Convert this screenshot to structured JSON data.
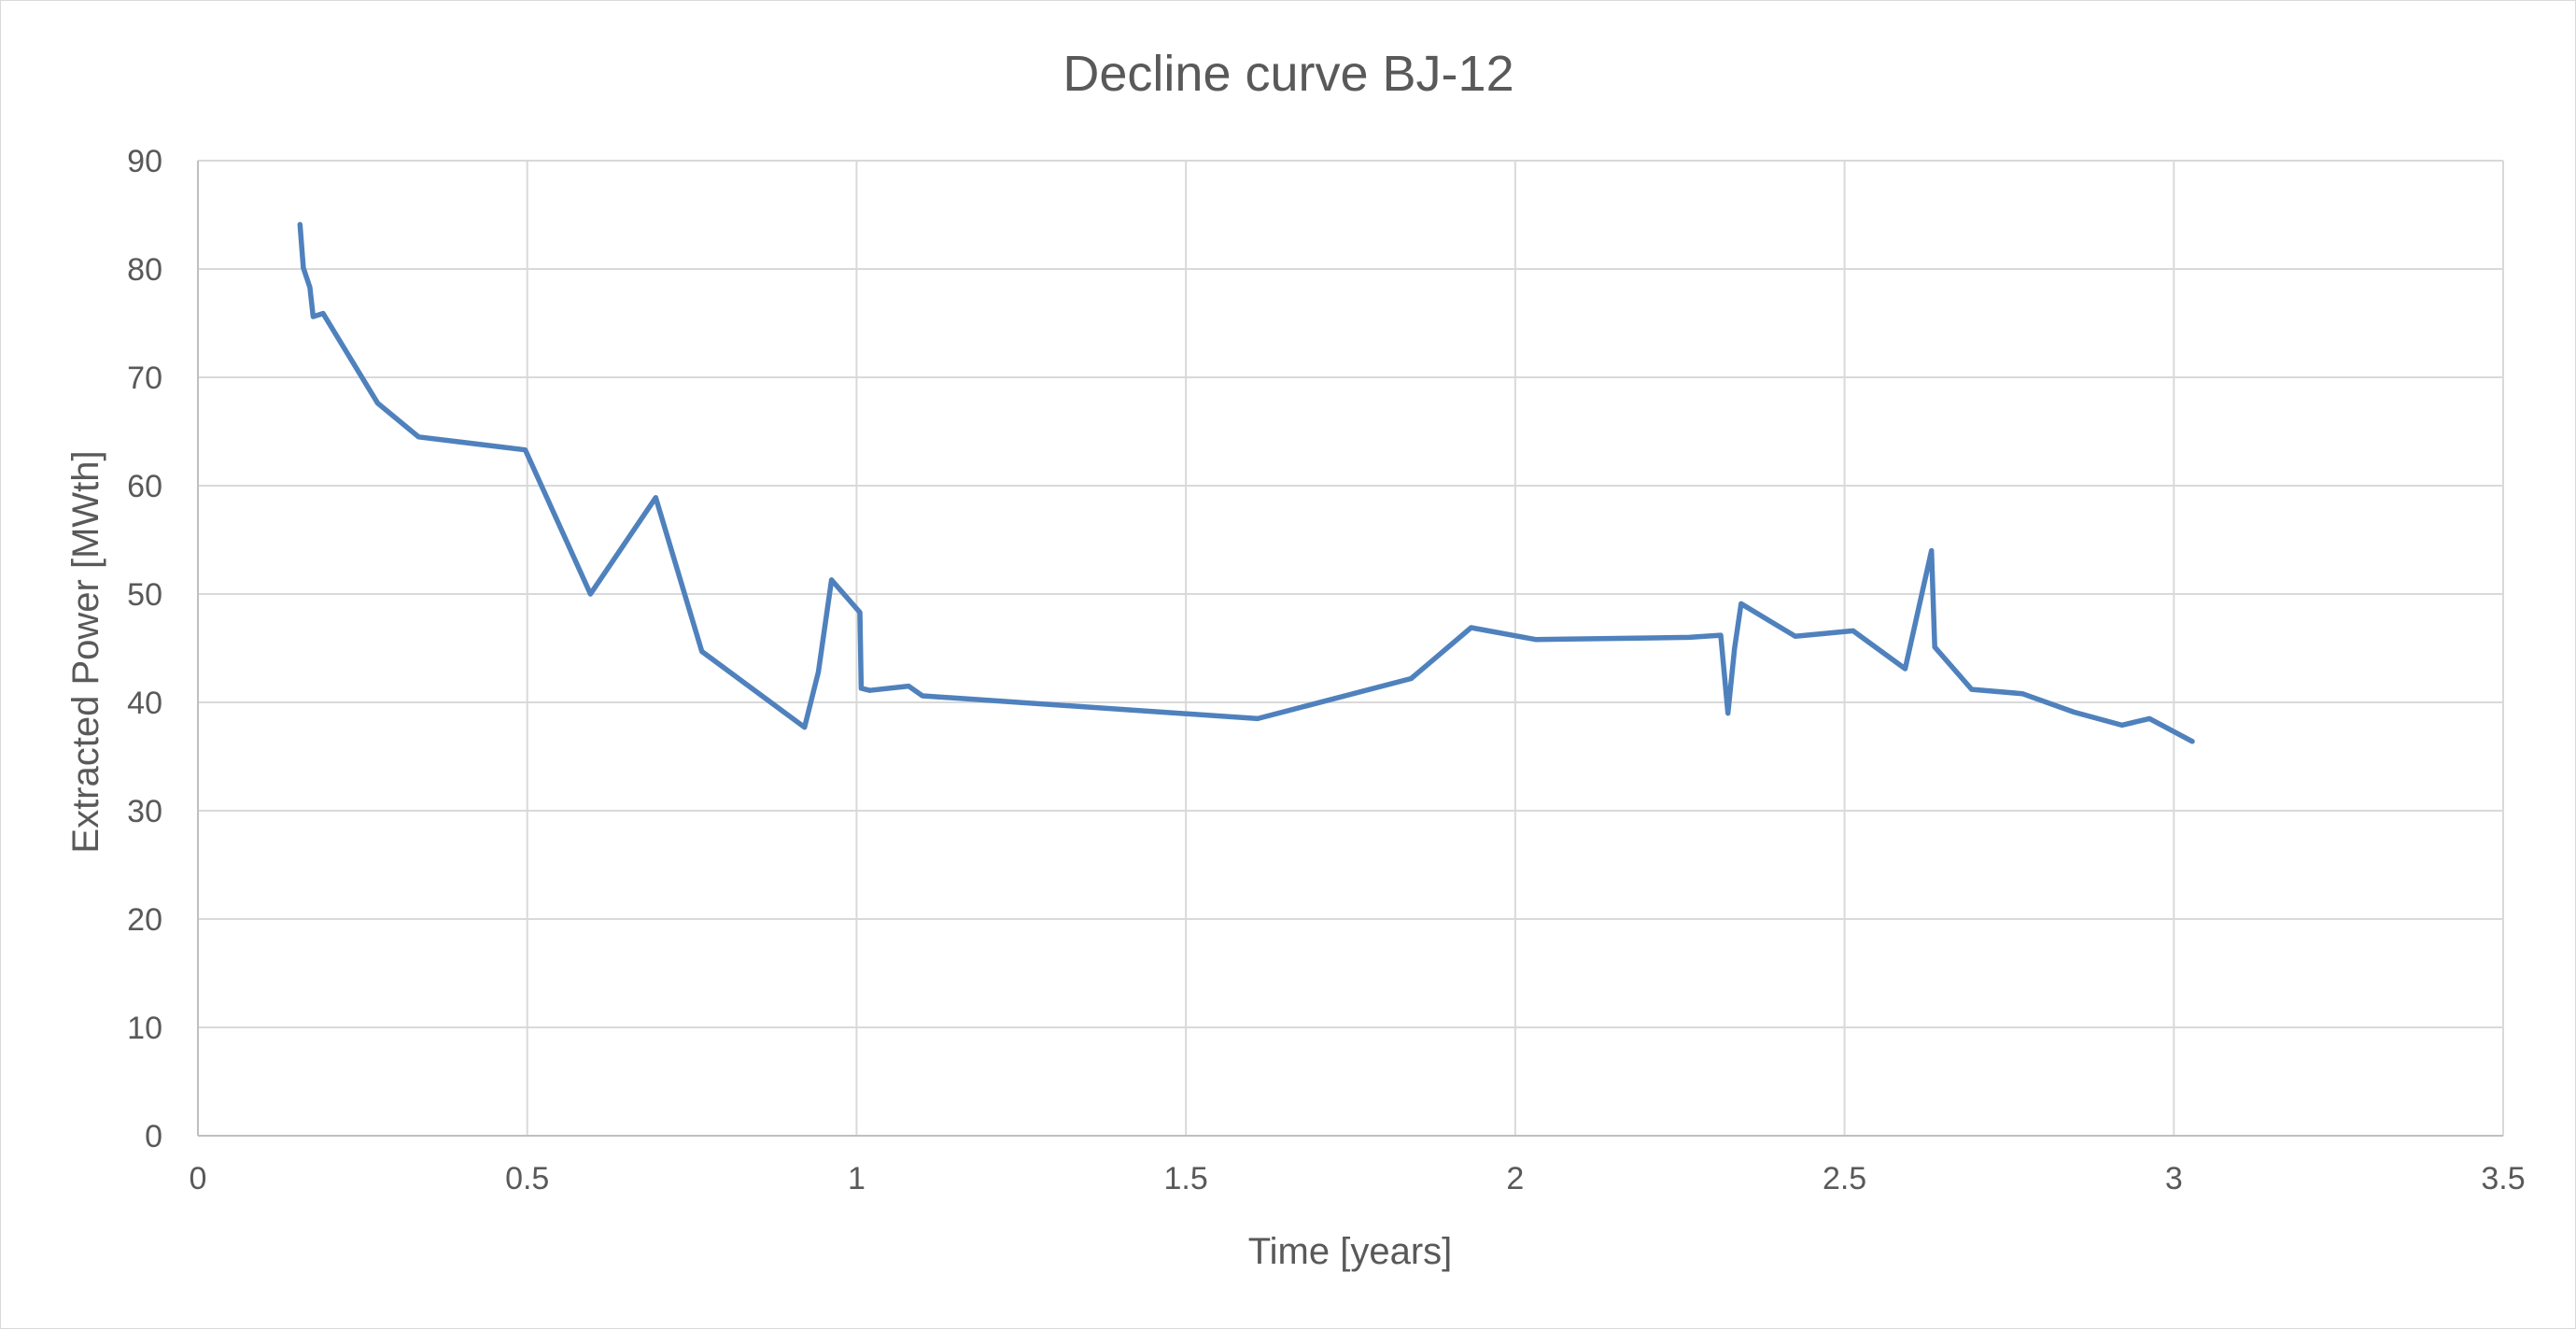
{
  "chart_data": {
    "type": "line",
    "title": "Decline curve BJ-12",
    "xlabel": "Time [years]",
    "ylabel": "Extracted Power [MWth]",
    "xlim": [
      0,
      3.5
    ],
    "ylim": [
      0,
      90
    ],
    "x_ticks": [
      0,
      0.5,
      1,
      1.5,
      2,
      2.5,
      3,
      3.5
    ],
    "x_tick_labels": [
      "0",
      "0.5",
      "1",
      "1.5",
      "2",
      "2.5",
      "3",
      "3.5"
    ],
    "y_ticks": [
      0,
      10,
      20,
      30,
      40,
      50,
      60,
      70,
      80,
      90
    ],
    "y_tick_labels": [
      "0",
      "10",
      "20",
      "30",
      "40",
      "50",
      "60",
      "70",
      "80",
      "90"
    ],
    "grid": true,
    "legend": "none",
    "series": [
      {
        "color": "#4f81bd",
        "x": [
          0.155,
          0.16,
          0.17,
          0.175,
          0.19,
          0.273,
          0.335,
          0.497,
          0.596,
          0.695,
          0.765,
          0.921,
          0.942,
          0.962,
          1.005,
          1.007,
          1.02,
          1.079,
          1.1,
          1.609,
          1.842,
          1.933,
          2.031,
          2.264,
          2.312,
          2.323,
          2.333,
          2.343,
          2.425,
          2.513,
          2.592,
          2.632,
          2.637,
          2.693,
          2.77,
          2.848,
          2.921,
          2.963,
          3.028
        ],
        "y": [
          84.1,
          80.1,
          78.3,
          75.6,
          75.9,
          67.6,
          64.5,
          63.3,
          50.0,
          58.9,
          44.7,
          37.7,
          42.8,
          51.3,
          48.3,
          41.3,
          41.1,
          41.5,
          40.6,
          38.5,
          42.2,
          46.9,
          45.8,
          46.0,
          46.2,
          39.0,
          45.0,
          49.1,
          46.1,
          46.6,
          43.1,
          54.0,
          45.1,
          41.2,
          40.8,
          39.1,
          37.9,
          38.5,
          36.4
        ]
      }
    ]
  }
}
